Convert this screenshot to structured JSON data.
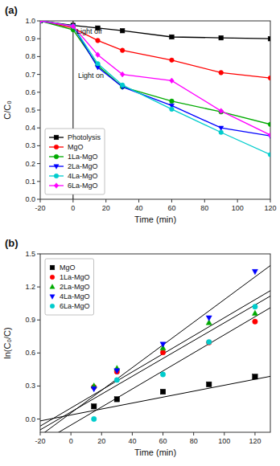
{
  "chart_data": [
    {
      "type": "line",
      "title": "(a)",
      "x_label": "Time (min)",
      "y_label": "C/C₀",
      "x": [
        -20,
        0,
        15,
        30,
        60,
        90,
        120
      ],
      "xlim": [
        -20,
        120
      ],
      "ylim": [
        0.0,
        1.0
      ],
      "xticks": [
        -20,
        0,
        20,
        40,
        60,
        80,
        100,
        120
      ],
      "yticks": [
        {
          "value": 0.0,
          "label": "0.0"
        },
        0.1,
        0.2,
        0.3,
        0.4,
        0.5,
        0.6,
        0.7,
        0.8,
        0.9,
        {
          "value": 1.0,
          "label": "1.0"
        }
      ],
      "vlines": [
        0
      ],
      "annotations": [
        {
          "text": "Light off",
          "x": 1,
          "y": 0.92,
          "position": "above"
        },
        {
          "text": "Light on",
          "x": 2,
          "y": 0.72,
          "position": "below"
        }
      ],
      "legend": "lower left",
      "grid": false,
      "series": [
        {
          "name": "Photolysis",
          "color": "#000000",
          "marker": "square",
          "values": [
            1.0,
            0.975,
            0.96,
            0.945,
            0.91,
            0.905,
            0.9
          ]
        },
        {
          "name": "MgO",
          "color": "#ff0000",
          "marker": "circle",
          "values": [
            1.0,
            0.96,
            0.89,
            0.835,
            0.78,
            0.71,
            0.68
          ]
        },
        {
          "name": "1La-MgO",
          "color": "#00aa00",
          "marker": "circle",
          "values": [
            1.0,
            0.95,
            0.75,
            0.63,
            0.55,
            0.49,
            0.42
          ]
        },
        {
          "name": "2La-MgO",
          "color": "#0000ff",
          "marker": "triangle-down",
          "values": [
            1.0,
            0.97,
            0.74,
            0.63,
            0.525,
            0.4,
            0.355
          ]
        },
        {
          "name": "4La-MgO",
          "color": "#00cccc",
          "marker": "circle",
          "values": [
            1.0,
            0.97,
            0.76,
            0.64,
            0.505,
            0.375,
            0.25
          ]
        },
        {
          "name": "6La-MgO",
          "color": "#ff00ff",
          "marker": "diamond",
          "values": [
            1.0,
            0.97,
            0.81,
            0.7,
            0.665,
            0.495,
            0.36
          ]
        }
      ]
    },
    {
      "type": "scatter",
      "title": "(b)",
      "x_label": "Time (min)",
      "y_label": "ln(C₀/C)",
      "x": [
        15,
        30,
        60,
        90,
        120
      ],
      "xlim": [
        -20,
        130
      ],
      "ylim": [
        -0.12,
        1.5
      ],
      "xticks": [
        -20,
        0,
        20,
        40,
        60,
        80,
        100,
        120
      ],
      "yticks": [
        {
          "value": 0.0,
          "label": "0.0"
        },
        0.3,
        0.6,
        0.9,
        1.2,
        1.5
      ],
      "legend": "upper left",
      "grid": false,
      "series": [
        {
          "name": "MgO",
          "color": "#000000",
          "marker": "square",
          "values": [
            0.115,
            0.18,
            0.248,
            0.315,
            0.385
          ],
          "fit_slope": 0.0027,
          "fit_intercept": 0.037
        },
        {
          "name": "1La-MgO",
          "color": "#ff0000",
          "marker": "circle",
          "values": [
            0.29,
            0.43,
            0.605,
            0.695,
            0.885
          ],
          "fit_slope": 0.0081,
          "fit_intercept": 0.064
        },
        {
          "name": "2La-MgO",
          "color": "#00aa00",
          "marker": "triangle-up",
          "values": [
            0.3,
            0.46,
            0.645,
            0.875,
            0.96
          ],
          "fit_slope": 0.0082,
          "fit_intercept": 0.1
        },
        {
          "name": "4La-MgO",
          "color": "#0000ff",
          "marker": "triangle-down",
          "values": [
            0.275,
            0.44,
            0.68,
            0.92,
            1.34
          ],
          "fit_slope": 0.0103,
          "fit_intercept": 0.055
        },
        {
          "name": "6La-MgO",
          "color": "#00cccc",
          "marker": "circle",
          "values": [
            0.0,
            0.355,
            0.405,
            0.7,
            1.02
          ],
          "fit_slope": 0.0082,
          "fit_intercept": -0.055
        }
      ]
    }
  ]
}
